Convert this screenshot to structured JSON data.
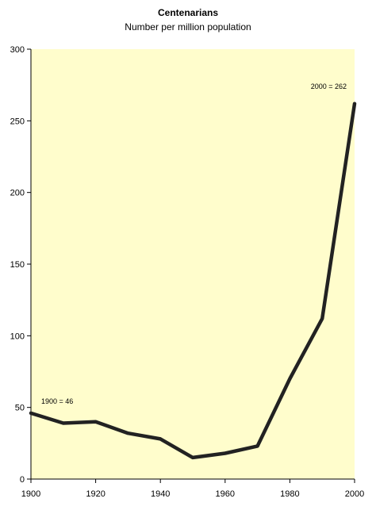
{
  "chart_data": {
    "type": "line",
    "title": "Centenarians",
    "subtitle": "Number per million population",
    "xlabel": "",
    "ylabel": "",
    "xlim": [
      1900,
      2000
    ],
    "ylim": [
      0,
      300
    ],
    "x_ticks": [
      "1900",
      "1920",
      "1940",
      "1960",
      "1980",
      "2000"
    ],
    "y_ticks": [
      "0",
      "50",
      "100",
      "150",
      "200",
      "250",
      "300"
    ],
    "grid": false,
    "legend": "none",
    "series": [
      {
        "x": [
          1900,
          1910,
          1920,
          1930,
          1940,
          1950,
          1960,
          1970,
          1980,
          1990,
          2000
        ],
        "values": [
          46,
          39,
          40,
          32,
          28,
          15,
          18,
          23,
          70,
          112,
          262
        ]
      }
    ],
    "annotations": [
      {
        "text": "1900 = 46",
        "x": 1900,
        "y": 46
      },
      {
        "text": "2000 = 262",
        "x": 2000,
        "y": 262
      }
    ],
    "colors": {
      "plot_background": "#FFFDCC",
      "line": "#222222",
      "axis": "#000000"
    }
  }
}
